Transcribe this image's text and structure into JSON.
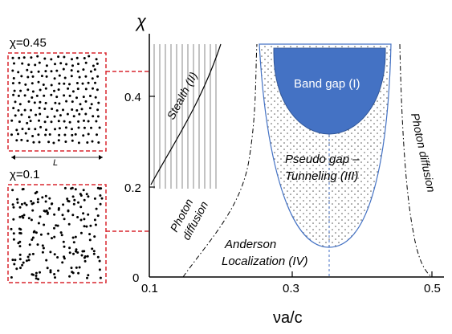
{
  "axes": {
    "y_symbol": "χ",
    "x_label": "νa/c",
    "x_ticks": [
      "0.1",
      "0.3",
      "0.5"
    ],
    "y_ticks": [
      "0",
      "0.2",
      "0.4"
    ]
  },
  "regions": {
    "band_gap": "Band gap (I)",
    "stealth": "Stealth (II)",
    "pseudo_gap_line1": "Pseudo gap –",
    "pseudo_gap_line2": "Tunneling (III)",
    "anderson_line1": "Anderson",
    "anderson_line2": "Localization (IV)",
    "photon_diffusion_left_line1": "Photon",
    "photon_diffusion_left_line2": "diffusion",
    "photon_diffusion_right": "Photon diffusion"
  },
  "insets": {
    "top_label": "χ=0.45",
    "bottom_label": "χ=0.1",
    "length_label": "L"
  },
  "colors": {
    "band_gap_fill": "#4472c4",
    "band_gap_outline": "#2f5597",
    "inset_border": "#d9262e",
    "axis": "#000000"
  }
}
